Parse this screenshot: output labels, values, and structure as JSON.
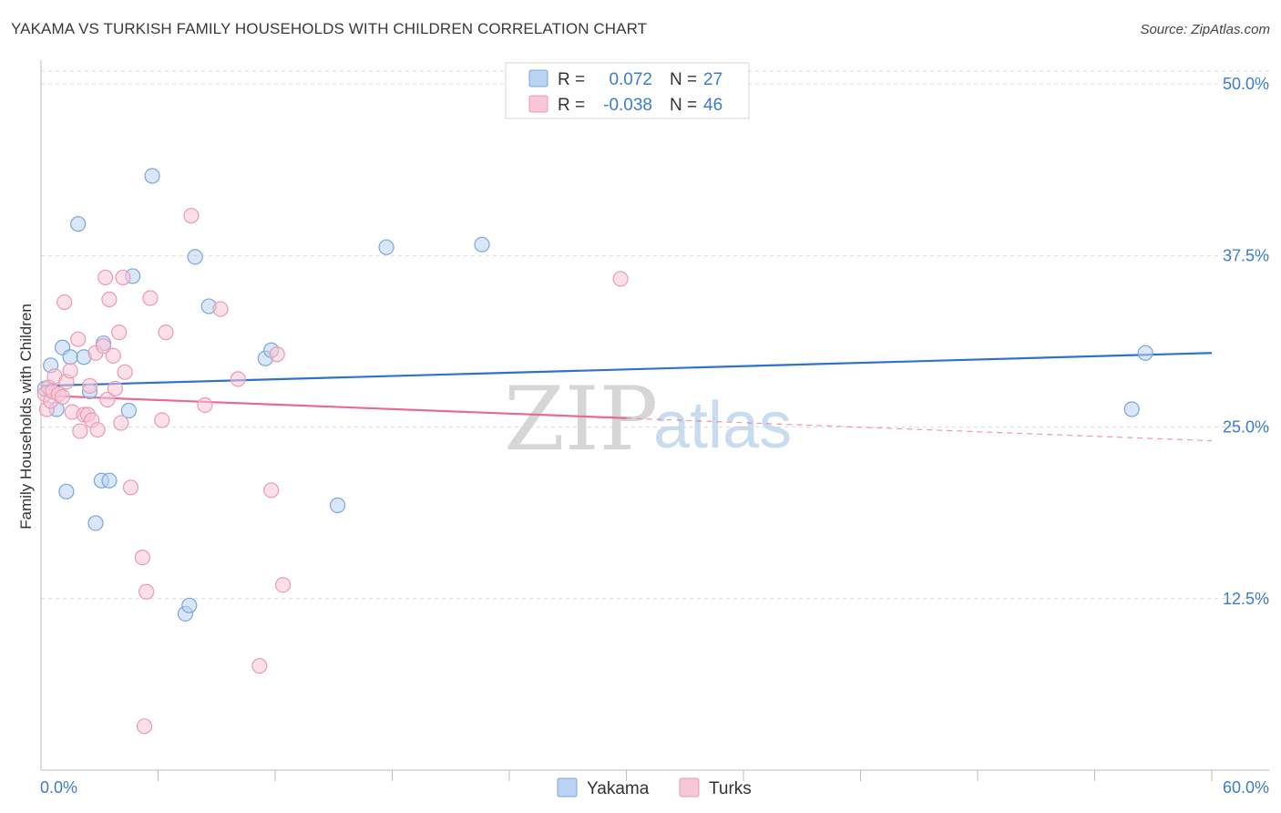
{
  "title": "YAKAMA VS TURKISH FAMILY HOUSEHOLDS WITH CHILDREN CORRELATION CHART",
  "source": "Source: ZipAtlas.com",
  "watermark": {
    "zip": "ZIP",
    "atlas": "atlas"
  },
  "legend": {
    "rows": [
      {
        "r_label": "R =",
        "r_value": "0.072",
        "n_label": "N =",
        "n_value": "27",
        "fill": "#b9d3f3",
        "stroke": "#7aa6dc"
      },
      {
        "r_label": "R =",
        "r_value": "-0.038",
        "n_label": "N =",
        "n_value": "46",
        "fill": "#f8c7d6",
        "stroke": "#ea9ab5"
      }
    ]
  },
  "bottom_legend": [
    {
      "label": "Yakama",
      "fill": "#b9d3f3",
      "stroke": "#7aa6dc"
    },
    {
      "label": "Turks",
      "fill": "#f8c7d6",
      "stroke": "#ea9ab5"
    }
  ],
  "chart_data": {
    "type": "scatter",
    "title": "YAKAMA VS TURKISH FAMILY HOUSEHOLDS WITH CHILDREN CORRELATION CHART",
    "xlabel": "",
    "ylabel": "Family Households with Children",
    "xlim": [
      0,
      60
    ],
    "ylim": [
      0,
      52
    ],
    "x_tick_labels": [
      {
        "value": 0,
        "label": "0.0%"
      },
      {
        "value": 60,
        "label": "60.0%"
      }
    ],
    "y_ticks": [
      {
        "value": 12.5,
        "label": "12.5%"
      },
      {
        "value": 25,
        "label": "25.0%"
      },
      {
        "value": 37.5,
        "label": "37.5%"
      },
      {
        "value": 50,
        "label": "50.0%"
      }
    ],
    "x_minor_ticks": [
      6,
      12,
      18,
      24,
      30,
      36,
      42,
      48,
      54,
      60
    ],
    "grid": true,
    "series": [
      {
        "name": "Yakama",
        "color": "#7aa6dc",
        "fill": "#b9d3f3",
        "trend_color": "#2f72cc",
        "trend": {
          "x0": 0,
          "y0": 28.0,
          "x1": 60,
          "y1": 30.4,
          "dashed_from": null
        },
        "points": [
          [
            0.2,
            27.8
          ],
          [
            0.5,
            29.5
          ],
          [
            0.8,
            26.3
          ],
          [
            1.1,
            30.8
          ],
          [
            1.3,
            20.3
          ],
          [
            1.5,
            30.1
          ],
          [
            1.9,
            39.8
          ],
          [
            2.2,
            30.1
          ],
          [
            2.5,
            27.6
          ],
          [
            2.8,
            18.0
          ],
          [
            3.1,
            21.1
          ],
          [
            3.2,
            31.1
          ],
          [
            3.5,
            21.1
          ],
          [
            4.5,
            26.2
          ],
          [
            4.7,
            36.0
          ],
          [
            5.7,
            43.3
          ],
          [
            7.4,
            11.4
          ],
          [
            7.6,
            12.0
          ],
          [
            7.9,
            37.4
          ],
          [
            8.6,
            33.8
          ],
          [
            11.5,
            30.0
          ],
          [
            11.8,
            30.6
          ],
          [
            15.2,
            19.3
          ],
          [
            17.7,
            38.1
          ],
          [
            22.6,
            38.3
          ],
          [
            55.9,
            26.3
          ],
          [
            56.6,
            30.4
          ]
        ]
      },
      {
        "name": "Turks",
        "color": "#ea9ab5",
        "fill": "#f8c7d6",
        "trend_color": "#e86a93",
        "trend": {
          "x0": 0,
          "y0": 27.3,
          "x1": 60,
          "y1": 24.0,
          "dashed_from": 30
        },
        "points": [
          [
            0.2,
            27.4
          ],
          [
            0.3,
            26.3
          ],
          [
            0.4,
            27.9
          ],
          [
            0.5,
            26.9
          ],
          [
            0.6,
            27.6
          ],
          [
            0.7,
            28.7
          ],
          [
            0.9,
            27.4
          ],
          [
            1.1,
            27.2
          ],
          [
            1.2,
            34.1
          ],
          [
            1.3,
            28.3
          ],
          [
            1.5,
            29.1
          ],
          [
            1.6,
            26.1
          ],
          [
            1.9,
            31.4
          ],
          [
            2.0,
            24.7
          ],
          [
            2.2,
            25.9
          ],
          [
            2.4,
            25.9
          ],
          [
            2.5,
            28.0
          ],
          [
            2.6,
            25.5
          ],
          [
            2.8,
            30.4
          ],
          [
            2.9,
            24.8
          ],
          [
            3.2,
            30.9
          ],
          [
            3.3,
            35.9
          ],
          [
            3.4,
            27.0
          ],
          [
            3.5,
            34.3
          ],
          [
            3.7,
            30.2
          ],
          [
            3.8,
            27.8
          ],
          [
            4.0,
            31.9
          ],
          [
            4.1,
            25.3
          ],
          [
            4.2,
            35.9
          ],
          [
            4.3,
            29.0
          ],
          [
            4.6,
            20.6
          ],
          [
            5.2,
            15.5
          ],
          [
            5.3,
            3.2
          ],
          [
            5.4,
            13.0
          ],
          [
            5.6,
            34.4
          ],
          [
            6.2,
            25.5
          ],
          [
            6.4,
            31.9
          ],
          [
            7.7,
            40.4
          ],
          [
            8.4,
            26.6
          ],
          [
            9.2,
            33.6
          ],
          [
            10.1,
            28.5
          ],
          [
            11.2,
            7.6
          ],
          [
            11.8,
            20.4
          ],
          [
            12.1,
            30.3
          ],
          [
            12.4,
            13.5
          ],
          [
            29.7,
            35.8
          ]
        ]
      }
    ]
  }
}
